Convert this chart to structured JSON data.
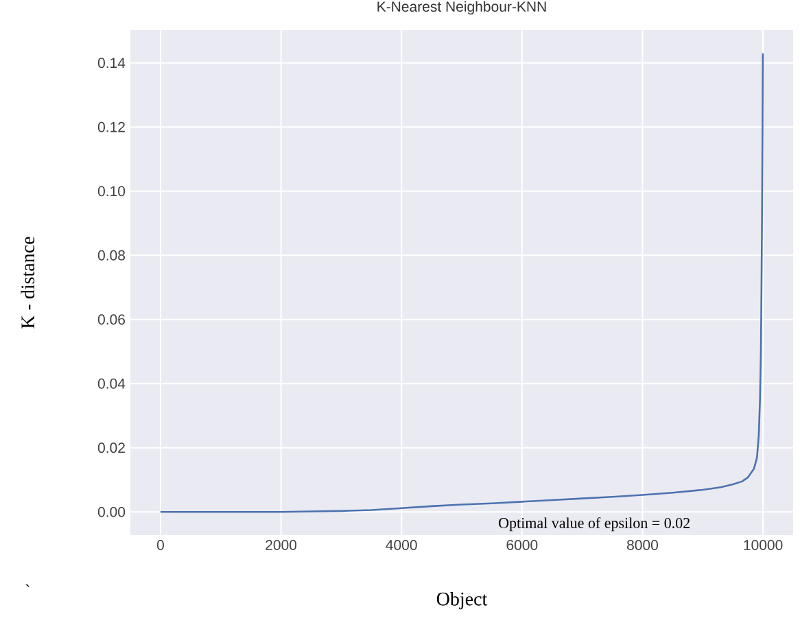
{
  "chart_data": {
    "type": "line",
    "title": "K-Nearest Neighbour-KNN",
    "xlabel": "Object",
    "ylabel": "K - distance",
    "annotations": [
      "Optimal value of epsilon = 0.02",
      "`"
    ],
    "x": [
      0,
      1000,
      2000,
      3000,
      3500,
      4000,
      4500,
      5000,
      5500,
      6000,
      6500,
      7000,
      7500,
      8000,
      8500,
      9000,
      9300,
      9500,
      9650,
      9750,
      9850,
      9900,
      9930,
      9950,
      9965,
      9975,
      9985,
      9992,
      9997
    ],
    "series": [
      {
        "color": "#4c72b0",
        "values": [
          0.0,
          0.0,
          0.0,
          0.0003,
          0.0006,
          0.0012,
          0.0018,
          0.0023,
          0.0027,
          0.0032,
          0.0037,
          0.0042,
          0.0047,
          0.0053,
          0.006,
          0.0069,
          0.0077,
          0.0086,
          0.0095,
          0.0108,
          0.0135,
          0.017,
          0.024,
          0.035,
          0.05,
          0.07,
          0.095,
          0.12,
          0.143
        ]
      }
    ],
    "xlim": [
      -500,
      10500
    ],
    "ylim": [
      -0.0072,
      0.1502
    ],
    "xticks": [
      0,
      2000,
      4000,
      6000,
      8000,
      10000
    ],
    "yticks": [
      {
        "value": 0,
        "label": "0.00"
      },
      {
        "value": 0.02,
        "label": "0.02"
      },
      {
        "value": 0.04,
        "label": "0.04"
      },
      {
        "value": 0.06,
        "label": "0.06"
      },
      {
        "value": 0.08,
        "label": "0.08"
      },
      {
        "value": 0.1,
        "label": "0.10"
      },
      {
        "value": 0.12,
        "label": "0.12"
      },
      {
        "value": 0.14,
        "label": "0.14"
      }
    ],
    "grid": true,
    "marker": "none",
    "line_style": "solid"
  }
}
